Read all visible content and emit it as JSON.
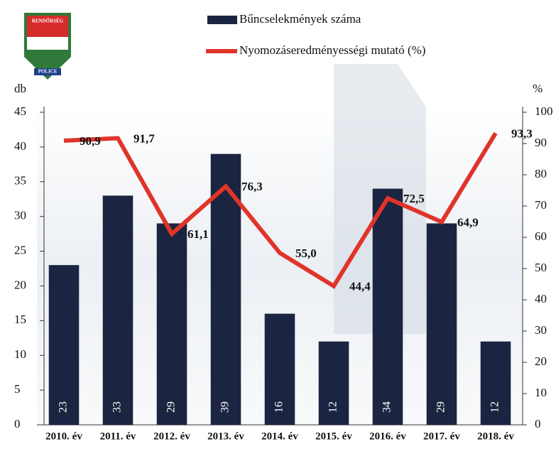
{
  "logo": {
    "top": "RENDŐRSÉG",
    "bottom": "POLICE"
  },
  "chart_data": {
    "type": "bar",
    "categories": [
      "2010. év",
      "2011. év",
      "2012. év",
      "2013. év",
      "2014. év",
      "2015. év",
      "2016. év",
      "2017. év",
      "2018. év"
    ],
    "series": [
      {
        "name": "Bűncselekmények száma",
        "type": "bar",
        "color": "#1b2440",
        "values": [
          23,
          33,
          29,
          39,
          16,
          12,
          34,
          29,
          12
        ]
      },
      {
        "name": "Nyomozáseredményességi mutató (%)",
        "type": "line",
        "axis": "y2",
        "color": "#e0342a",
        "values": [
          90.9,
          91.7,
          61.1,
          76.3,
          55.0,
          44.4,
          72.5,
          64.9,
          93.3
        ],
        "value_labels": [
          "90,9",
          "91,7",
          "61,1",
          "76,3",
          "55,0",
          "44,4",
          "72,5",
          "64,9",
          "93,3"
        ]
      }
    ],
    "ylabel": "db",
    "y2label": "%",
    "ylim": [
      0,
      45
    ],
    "yticks": [
      0,
      5,
      10,
      15,
      20,
      25,
      30,
      35,
      40,
      45
    ],
    "y2lim": [
      0,
      100
    ],
    "y2ticks": [
      0,
      10,
      20,
      30,
      40,
      50,
      60,
      70,
      80,
      90,
      100
    ]
  }
}
